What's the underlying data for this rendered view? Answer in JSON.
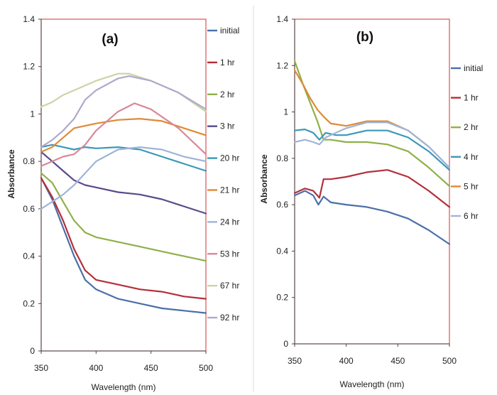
{
  "chart_data": [
    {
      "type": "line",
      "panel_label": "(a)",
      "xlabel": "Wavelength (nm)",
      "ylabel": "Absorbance",
      "xlim": [
        350,
        500
      ],
      "ylim": [
        0,
        1.4
      ],
      "x_ticks": [
        "350",
        "400",
        "450",
        "500"
      ],
      "y_ticks": [
        "0",
        "0.2",
        "0.4",
        "0.6",
        "0.8",
        "1",
        "1.2",
        "1.4"
      ],
      "grid": false,
      "legend_position": "right",
      "series": [
        {
          "name": "initial",
          "color": "#4a6fa8",
          "points": [
            [
              350,
              0.73
            ],
            [
              360,
              0.64
            ],
            [
              370,
              0.52
            ],
            [
              380,
              0.4
            ],
            [
              390,
              0.3
            ],
            [
              400,
              0.26
            ],
            [
              420,
              0.22
            ],
            [
              440,
              0.2
            ],
            [
              460,
              0.18
            ],
            [
              480,
              0.17
            ],
            [
              500,
              0.16
            ]
          ]
        },
        {
          "name": "1 hr",
          "color": "#b3303a",
          "points": [
            [
              350,
              0.73
            ],
            [
              360,
              0.65
            ],
            [
              370,
              0.55
            ],
            [
              380,
              0.43
            ],
            [
              390,
              0.34
            ],
            [
              400,
              0.3
            ],
            [
              420,
              0.28
            ],
            [
              440,
              0.26
            ],
            [
              460,
              0.25
            ],
            [
              480,
              0.23
            ],
            [
              500,
              0.22
            ]
          ]
        },
        {
          "name": "2 hr",
          "color": "#8fb04a",
          "points": [
            [
              350,
              0.75
            ],
            [
              360,
              0.71
            ],
            [
              370,
              0.63
            ],
            [
              380,
              0.55
            ],
            [
              390,
              0.5
            ],
            [
              400,
              0.48
            ],
            [
              420,
              0.46
            ],
            [
              440,
              0.44
            ],
            [
              460,
              0.42
            ],
            [
              480,
              0.4
            ],
            [
              500,
              0.38
            ]
          ]
        },
        {
          "name": "3 hr",
          "color": "#5a4a8c",
          "points": [
            [
              350,
              0.84
            ],
            [
              360,
              0.8
            ],
            [
              370,
              0.76
            ],
            [
              380,
              0.72
            ],
            [
              390,
              0.7
            ],
            [
              400,
              0.69
            ],
            [
              420,
              0.67
            ],
            [
              440,
              0.66
            ],
            [
              460,
              0.64
            ],
            [
              480,
              0.61
            ],
            [
              500,
              0.58
            ]
          ]
        },
        {
          "name": "20 hr",
          "color": "#3b98b8",
          "points": [
            [
              350,
              0.86
            ],
            [
              360,
              0.87
            ],
            [
              370,
              0.86
            ],
            [
              380,
              0.85
            ],
            [
              390,
              0.86
            ],
            [
              400,
              0.855
            ],
            [
              420,
              0.86
            ],
            [
              440,
              0.85
            ],
            [
              460,
              0.82
            ],
            [
              480,
              0.79
            ],
            [
              500,
              0.76
            ]
          ]
        },
        {
          "name": "21 hr",
          "color": "#e08a35",
          "points": [
            [
              350,
              0.84
            ],
            [
              360,
              0.86
            ],
            [
              370,
              0.9
            ],
            [
              380,
              0.94
            ],
            [
              390,
              0.95
            ],
            [
              400,
              0.96
            ],
            [
              420,
              0.975
            ],
            [
              440,
              0.98
            ],
            [
              460,
              0.97
            ],
            [
              480,
              0.94
            ],
            [
              500,
              0.91
            ]
          ]
        },
        {
          "name": "24 hr",
          "color": "#a0b4d8",
          "points": [
            [
              350,
              0.6
            ],
            [
              360,
              0.63
            ],
            [
              370,
              0.66
            ],
            [
              380,
              0.7
            ],
            [
              390,
              0.75
            ],
            [
              400,
              0.8
            ],
            [
              420,
              0.85
            ],
            [
              440,
              0.86
            ],
            [
              460,
              0.85
            ],
            [
              480,
              0.82
            ],
            [
              500,
              0.8
            ]
          ]
        },
        {
          "name": "53 hr",
          "color": "#d88898",
          "points": [
            [
              350,
              0.78
            ],
            [
              360,
              0.8
            ],
            [
              370,
              0.82
            ],
            [
              380,
              0.83
            ],
            [
              390,
              0.87
            ],
            [
              400,
              0.93
            ],
            [
              420,
              1.01
            ],
            [
              435,
              1.045
            ],
            [
              450,
              1.02
            ],
            [
              475,
              0.94
            ],
            [
              500,
              0.83
            ]
          ]
        },
        {
          "name": "67 hr",
          "color": "#c8d6a6",
          "points": [
            [
              350,
              1.03
            ],
            [
              360,
              1.05
            ],
            [
              370,
              1.08
            ],
            [
              380,
              1.1
            ],
            [
              390,
              1.12
            ],
            [
              400,
              1.14
            ],
            [
              420,
              1.17
            ],
            [
              430,
              1.17
            ],
            [
              450,
              1.14
            ],
            [
              475,
              1.09
            ],
            [
              500,
              1.01
            ]
          ]
        },
        {
          "name": "92 hr",
          "color": "#b0a8cc",
          "points": [
            [
              350,
              0.86
            ],
            [
              360,
              0.89
            ],
            [
              370,
              0.93
            ],
            [
              380,
              0.98
            ],
            [
              390,
              1.06
            ],
            [
              400,
              1.1
            ],
            [
              420,
              1.15
            ],
            [
              430,
              1.16
            ],
            [
              450,
              1.14
            ],
            [
              475,
              1.09
            ],
            [
              500,
              1.02
            ]
          ]
        }
      ]
    },
    {
      "type": "line",
      "panel_label": "(b)",
      "xlabel": "Wavelength (nm)",
      "ylabel": "Absorbance",
      "xlim": [
        350,
        500
      ],
      "ylim": [
        0,
        1.4
      ],
      "x_ticks": [
        "350",
        "400",
        "450",
        "500"
      ],
      "y_ticks": [
        "0",
        "0.2",
        "0.4",
        "0.6",
        "0.8",
        "1",
        "1.2",
        "1.4"
      ],
      "grid": false,
      "legend_position": "right",
      "series": [
        {
          "name": "initial",
          "color": "#4a6fa8",
          "points": [
            [
              350,
              0.64
            ],
            [
              360,
              0.66
            ],
            [
              368,
              0.64
            ],
            [
              373,
              0.6
            ],
            [
              378,
              0.635
            ],
            [
              385,
              0.61
            ],
            [
              400,
              0.6
            ],
            [
              420,
              0.59
            ],
            [
              440,
              0.57
            ],
            [
              460,
              0.54
            ],
            [
              480,
              0.49
            ],
            [
              500,
              0.43
            ]
          ]
        },
        {
          "name": "1 hr",
          "color": "#b3303a",
          "points": [
            [
              350,
              0.65
            ],
            [
              360,
              0.67
            ],
            [
              368,
              0.66
            ],
            [
              374,
              0.63
            ],
            [
              378,
              0.71
            ],
            [
              385,
              0.71
            ],
            [
              400,
              0.72
            ],
            [
              420,
              0.74
            ],
            [
              440,
              0.75
            ],
            [
              460,
              0.72
            ],
            [
              480,
              0.66
            ],
            [
              500,
              0.59
            ]
          ]
        },
        {
          "name": "2 hr",
          "color": "#8fb04a",
          "points": [
            [
              350,
              1.22
            ],
            [
              358,
              1.12
            ],
            [
              365,
              1.04
            ],
            [
              372,
              0.96
            ],
            [
              378,
              0.88
            ],
            [
              385,
              0.88
            ],
            [
              400,
              0.87
            ],
            [
              420,
              0.87
            ],
            [
              440,
              0.86
            ],
            [
              460,
              0.83
            ],
            [
              480,
              0.76
            ],
            [
              500,
              0.68
            ]
          ]
        },
        {
          "name": "4 hr",
          "color": "#3b98b8",
          "points": [
            [
              350,
              0.92
            ],
            [
              360,
              0.925
            ],
            [
              368,
              0.91
            ],
            [
              374,
              0.88
            ],
            [
              380,
              0.91
            ],
            [
              390,
              0.9
            ],
            [
              400,
              0.9
            ],
            [
              420,
              0.92
            ],
            [
              440,
              0.92
            ],
            [
              460,
              0.89
            ],
            [
              480,
              0.83
            ],
            [
              500,
              0.75
            ]
          ]
        },
        {
          "name": "5 hr",
          "color": "#e08a35",
          "points": [
            [
              350,
              1.18
            ],
            [
              358,
              1.12
            ],
            [
              365,
              1.06
            ],
            [
              372,
              1.01
            ],
            [
              378,
              0.98
            ],
            [
              385,
              0.95
            ],
            [
              400,
              0.94
            ],
            [
              420,
              0.96
            ],
            [
              440,
              0.96
            ],
            [
              460,
              0.92
            ],
            [
              480,
              0.85
            ],
            [
              500,
              0.76
            ]
          ]
        },
        {
          "name": "6 hr",
          "color": "#a0b4d8",
          "points": [
            [
              350,
              0.87
            ],
            [
              360,
              0.88
            ],
            [
              368,
              0.87
            ],
            [
              374,
              0.86
            ],
            [
              380,
              0.89
            ],
            [
              390,
              0.91
            ],
            [
              400,
              0.93
            ],
            [
              420,
              0.955
            ],
            [
              440,
              0.955
            ],
            [
              460,
              0.92
            ],
            [
              480,
              0.85
            ],
            [
              500,
              0.76
            ]
          ]
        }
      ]
    }
  ]
}
